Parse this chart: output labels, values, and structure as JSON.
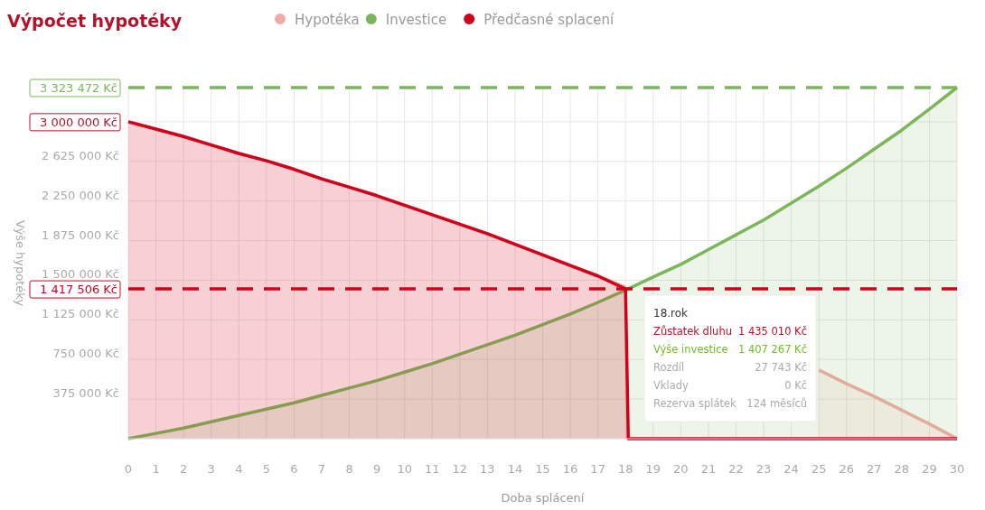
{
  "chart_data": {
    "type": "area",
    "title": "Výpočet hypotéky",
    "xlabel": "Doba splácení",
    "ylabel": "Výše hypotéky",
    "xlim": [
      0,
      30
    ],
    "xticks": [
      0,
      1,
      2,
      3,
      4,
      5,
      6,
      7,
      8,
      9,
      10,
      11,
      12,
      13,
      14,
      15,
      16,
      17,
      18,
      19,
      20,
      21,
      22,
      23,
      24,
      25,
      26,
      27,
      28,
      29,
      30
    ],
    "ylim": [
      0,
      3323472
    ],
    "yticks": [
      {
        "value": 375000,
        "label": "375 000 Kč"
      },
      {
        "value": 750000,
        "label": "750 000 Kč"
      },
      {
        "value": 1125000,
        "label": "1 125 000 Kč"
      },
      {
        "value": 1500000,
        "label": "1 500 000 Kč"
      },
      {
        "value": 1875000,
        "label": "1 875 000 Kč"
      },
      {
        "value": 2250000,
        "label": "2 250 000 Kč"
      },
      {
        "value": 2625000,
        "label": "2 625 000 Kč"
      },
      {
        "value": 3000000,
        "label": null
      }
    ],
    "grid": true,
    "legend": "top",
    "marker": "none",
    "x": [
      0,
      1,
      2,
      3,
      4,
      5,
      6,
      7,
      8,
      9,
      10,
      11,
      12,
      13,
      14,
      15,
      16,
      17,
      18,
      19,
      20,
      21,
      22,
      23,
      24,
      25,
      26,
      27,
      28,
      29,
      30
    ],
    "series": [
      {
        "name": "Hypotéka",
        "color": "#f2aaa6",
        "values": [
          3000000,
          2930000,
          2860000,
          2780000,
          2700000,
          2630000,
          2550000,
          2460000,
          2380000,
          2300000,
          2210000,
          2120000,
          2030000,
          1940000,
          1840000,
          1740000,
          1640000,
          1540000,
          1435010,
          null,
          null,
          null,
          null,
          null,
          null,
          650000,
          520000,
          400000,
          270000,
          140000,
          0
        ]
      },
      {
        "name": "Investice",
        "color": "#7cb65a",
        "values": [
          0,
          50000,
          100000,
          160000,
          220000,
          280000,
          340000,
          410000,
          480000,
          550000,
          630000,
          710000,
          800000,
          890000,
          980000,
          1080000,
          1180000,
          1290000,
          1407267,
          1530000,
          1650000,
          1790000,
          1930000,
          2070000,
          2230000,
          2390000,
          2560000,
          2740000,
          2920000,
          3120000,
          3323472
        ]
      },
      {
        "name": "Předčasné splacení",
        "color": "#d0021b",
        "x": [
          0,
          1,
          2,
          3,
          4,
          5,
          6,
          7,
          8,
          9,
          10,
          11,
          12,
          13,
          14,
          15,
          16,
          17,
          18,
          18.1,
          30
        ],
        "values": [
          3000000,
          2930000,
          2860000,
          2780000,
          2700000,
          2630000,
          2550000,
          2460000,
          2380000,
          2300000,
          2210000,
          2120000,
          2030000,
          1940000,
          1840000,
          1740000,
          1640000,
          1540000,
          1417506,
          0,
          0
        ]
      }
    ],
    "ref_lines": [
      {
        "axis": "y",
        "value": 3323472,
        "label": "3 323 472 Kč",
        "color": "#7cb65a",
        "line_style": "dashed"
      },
      {
        "axis": "y",
        "value": 1417506,
        "label": "1 417 506 Kč",
        "color": "#d0021b",
        "line_style": "dashed"
      }
    ],
    "annotations": [
      {
        "text": "3 000 000 Kč",
        "x": 0,
        "y": 3000000
      },
      "18.rok",
      "Zůstatek dluhu",
      "1 435 010 Kč",
      "Výše investice",
      "1 407 267 Kč",
      "Rozdíl",
      "27 743 Kč",
      "Vklady",
      "0 Kč",
      "Rezerva splátek",
      "124 měsíců"
    ]
  }
}
